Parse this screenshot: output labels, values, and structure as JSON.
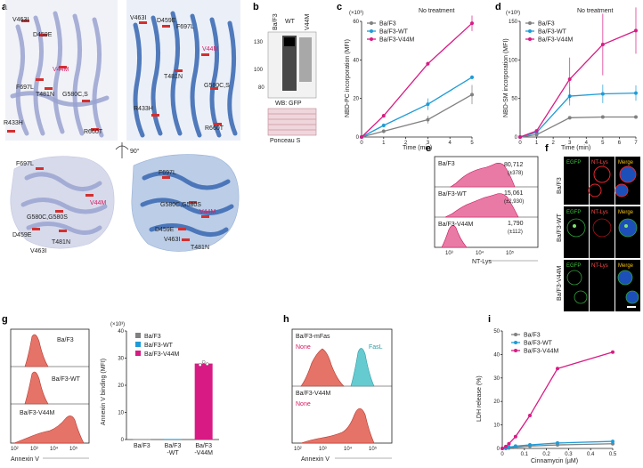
{
  "panels": {
    "a": {
      "label": "a",
      "rotation": "90°",
      "top_left": [
        "V463I",
        "D459E",
        "V44M",
        "F697L",
        "T481N",
        "G580C,S",
        "R433H",
        "R660T"
      ],
      "top_right": [
        "V463I",
        "D459E",
        "F697L",
        "V44M",
        "T481N",
        "G580C,S",
        "R433H",
        "R660T"
      ],
      "bottom_left": [
        "F697L",
        "V44M",
        "G580C,G580S",
        "D459E",
        "T481N",
        "V463I"
      ],
      "bottom_right": [
        "F697L",
        "G580C,G580S",
        "V44M",
        "D459E",
        "V463I",
        "T481N"
      ]
    },
    "b": {
      "label": "b",
      "lanes": [
        "Ba/F3",
        "WT",
        "V44M"
      ],
      "kda": [
        "130",
        "100",
        "80"
      ],
      "wb_label": "WB: GFP",
      "ponceau_label": "Ponceau S"
    },
    "c": {
      "label": "c",
      "exponent": "(×10³)",
      "title": "No treatment",
      "ylabel": "NBD-PC incorporation (MFI)",
      "xlabel": "Time (min)",
      "legend": [
        "Ba/F3",
        "Ba/F3-WT",
        "Ba/F3-V44M"
      ]
    },
    "d": {
      "label": "d",
      "exponent": "(×10³)",
      "title": "No treatment",
      "ylabel": "NBD-SM incorporation (MFI)",
      "xlabel": "Time (min)",
      "legend": [
        "Ba/F3",
        "Ba/F3-WT",
        "Ba/F3-V44M"
      ]
    },
    "e": {
      "label": "e",
      "rows": [
        {
          "name": "Ba/F3",
          "value": "80,712",
          "sd": "(±378)"
        },
        {
          "name": "Ba/F3-WT",
          "value": "15,061",
          "sd": "(±2,930)"
        },
        {
          "name": "Ba/F3-V44M",
          "value": "1,790",
          "sd": "(±112)"
        }
      ],
      "ticks": [
        "10³",
        "10⁴",
        "10⁵"
      ],
      "xlabel": "NT-Lys"
    },
    "f": {
      "label": "f",
      "columns": [
        "EGFP",
        "NT-Lys",
        "Merge"
      ],
      "rows": [
        "Ba/F3",
        "Ba/F3-WT",
        "Ba/F3-V44M"
      ]
    },
    "g": {
      "label": "g",
      "hist_rows": [
        "Ba/F3",
        "Ba/F3-WT",
        "Ba/F3-V44M"
      ],
      "ticks": [
        "10²",
        "10³",
        "10⁴",
        "10⁵"
      ],
      "xlabel": "Annexin V",
      "exponent": "(×10³)",
      "ylabel": "Annexin V binding (MFI)",
      "legend": [
        "Ba/F3",
        "Ba/F3-WT",
        "Ba/F3-V44M"
      ],
      "bar_labels": [
        "Ba/F3",
        "Ba/F3\n-WT",
        "Ba/F3\n-V44M"
      ]
    },
    "h": {
      "label": "h",
      "top_name": "Ba/F3-mFas",
      "top_none": "None",
      "top_fasl": "FasL",
      "bottom_name": "Ba/F3-V44M",
      "bottom_none": "None",
      "ticks": [
        "10²",
        "10³",
        "10⁴",
        "10⁵"
      ],
      "xlabel": "Annexin V"
    },
    "i": {
      "label": "i",
      "ylabel": "LDH release (%)",
      "xlabel": "Cinnamycin (µM)",
      "legend": [
        "Ba/F3",
        "Ba/F3-WT",
        "Ba/F3-V44M"
      ]
    }
  },
  "colors": {
    "bf3": "#808080",
    "wt": "#1e9bd7",
    "v44m": "#d81b84"
  },
  "chart_data": [
    {
      "type": "line",
      "id": "c",
      "title": "No treatment",
      "xlabel": "Time (min)",
      "ylabel": "NBD-PC incorporation (MFI)",
      "x": [
        0,
        1,
        3,
        5
      ],
      "xlim": [
        0,
        5
      ],
      "ylim": [
        0,
        60
      ],
      "xticks": [
        0,
        1,
        2,
        3,
        4,
        5
      ],
      "yticks": [
        0,
        20,
        40,
        60
      ],
      "series": [
        {
          "name": "Ba/F3",
          "values": [
            0,
            3,
            9,
            22
          ],
          "err": [
            0,
            1,
            2,
            5
          ]
        },
        {
          "name": "Ba/F3-WT",
          "values": [
            0,
            6,
            17,
            31
          ],
          "err": [
            0,
            1,
            3,
            1
          ]
        },
        {
          "name": "Ba/F3-V44M",
          "values": [
            0,
            11,
            38,
            59
          ],
          "err": [
            0,
            1,
            1,
            4
          ]
        }
      ]
    },
    {
      "type": "line",
      "id": "d",
      "title": "No treatment",
      "xlabel": "Time (min)",
      "ylabel": "NBD-SM incorporation (MFI)",
      "x": [
        0,
        1,
        3,
        5,
        7
      ],
      "xlim": [
        0,
        7
      ],
      "ylim": [
        0,
        150
      ],
      "xticks": [
        0,
        1,
        2,
        3,
        4,
        5,
        6,
        7
      ],
      "yticks": [
        0,
        50,
        100,
        150
      ],
      "series": [
        {
          "name": "Ba/F3",
          "values": [
            0,
            3,
            25,
            26,
            26
          ],
          "err": [
            0,
            1,
            2,
            2,
            2
          ]
        },
        {
          "name": "Ba/F3-WT",
          "values": [
            0,
            6,
            53,
            56,
            57
          ],
          "err": [
            0,
            2,
            12,
            12,
            10
          ]
        },
        {
          "name": "Ba/F3-V44M",
          "values": [
            0,
            8,
            75,
            120,
            138
          ],
          "err": [
            0,
            2,
            28,
            40,
            30
          ]
        }
      ]
    },
    {
      "type": "bar",
      "id": "g",
      "ylabel": "Annexin V binding (MFI)",
      "categories": [
        "Ba/F3",
        "Ba/F3-WT",
        "Ba/F3-V44M"
      ],
      "values": [
        0.1,
        0.2,
        28
      ],
      "ylim": [
        0,
        40
      ],
      "yticks": [
        0,
        10,
        20,
        30,
        40
      ]
    },
    {
      "type": "line",
      "id": "i",
      "xlabel": "Cinnamycin (µM)",
      "ylabel": "LDH release (%)",
      "x": [
        0,
        0.016,
        0.03,
        0.06,
        0.125,
        0.25,
        0.5
      ],
      "xlim": [
        0,
        0.5
      ],
      "ylim": [
        0,
        50
      ],
      "xticks": [
        0,
        0.1,
        0.2,
        0.3,
        0.4,
        0.5
      ],
      "yticks": [
        0,
        10,
        20,
        30,
        40,
        50
      ],
      "series": [
        {
          "name": "Ba/F3",
          "values": [
            0,
            0,
            0.2,
            0.5,
            1,
            1.5,
            2
          ]
        },
        {
          "name": "Ba/F3-WT",
          "values": [
            0,
            0.2,
            0.5,
            1,
            1.5,
            2.3,
            3
          ]
        },
        {
          "name": "Ba/F3-V44M",
          "values": [
            0,
            0.8,
            2,
            5,
            14,
            34,
            41
          ]
        }
      ]
    }
  ]
}
